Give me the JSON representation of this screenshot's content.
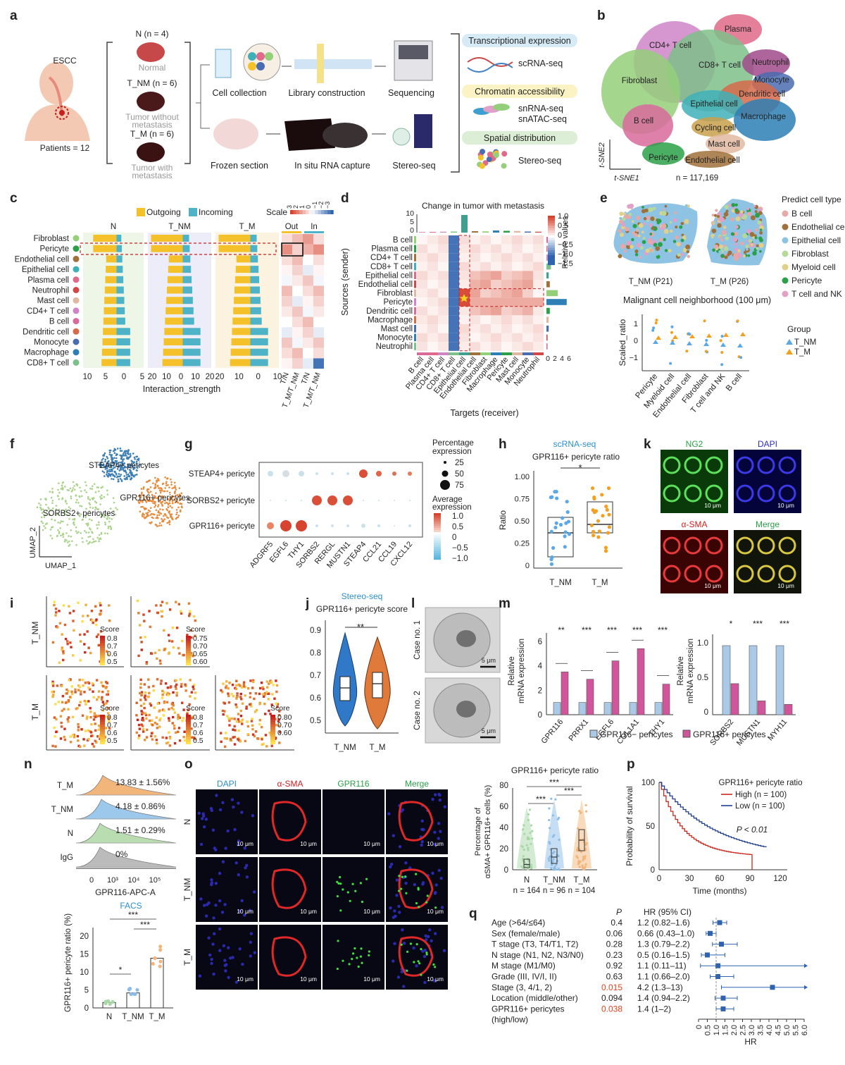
{
  "panel_letters": [
    "a",
    "b",
    "c",
    "d",
    "e",
    "f",
    "g",
    "h",
    "k",
    "i",
    "j",
    "l",
    "m",
    "n",
    "o",
    "p",
    "q"
  ],
  "a": {
    "escc": "ESCC",
    "patients": "Patients = 12",
    "groups": [
      {
        "id": "N (n = 4)",
        "name": "Normal"
      },
      {
        "id": "T_NM (n = 6)",
        "name": "Tumor without",
        "name2": "metastasis"
      },
      {
        "id": "T_M (n = 6)",
        "name": "Tumor with",
        "name2": "metastasis"
      }
    ],
    "steps_top": [
      "Cell collection",
      "Library construction",
      "Sequencing"
    ],
    "steps_bottom": [
      "Frozen section",
      "In situ RNA capture",
      "Stereo-seq"
    ],
    "boxes": [
      {
        "title": "Transcriptional expression",
        "items": [
          "scRNA-seq"
        ],
        "color": "#d7ebf7"
      },
      {
        "title": "Chromatin accessibility",
        "items": [
          "snRNA-seq",
          "snATAC-seq"
        ],
        "color": "#fbf3c4"
      },
      {
        "title": "Spatial distribution",
        "items": [
          "Stereo-seq"
        ],
        "color": "#dcefd6"
      }
    ]
  },
  "b": {
    "clusters": [
      {
        "name": "Plasma",
        "color": "#e06a8a"
      },
      {
        "name": "CD4+ T cell",
        "color": "#cf84c8"
      },
      {
        "name": "CD8+ T cell",
        "color": "#7ec08a"
      },
      {
        "name": "Neutrophil",
        "color": "#a04a8a"
      },
      {
        "name": "Monocyte",
        "color": "#4a6cb0"
      },
      {
        "name": "Fibroblast",
        "color": "#94cf7a"
      },
      {
        "name": "Dendritic cell",
        "color": "#d66a4a"
      },
      {
        "name": "Epithelial cell",
        "color": "#3fb0b8"
      },
      {
        "name": "Macrophage",
        "color": "#2d7fb5"
      },
      {
        "name": "B cell",
        "color": "#d96a9c"
      },
      {
        "name": "Cycling cell",
        "color": "#c8a04a"
      },
      {
        "name": "Mast cell",
        "color": "#e0b8a0"
      },
      {
        "name": "Pericyte",
        "color": "#2aa048"
      },
      {
        "name": "Endothelial cell",
        "color": "#a0703a"
      }
    ],
    "x_axis": "t-SNE1",
    "y_axis": "t-SNE2",
    "n": "n = 117,169"
  },
  "c": {
    "legend": [
      "Outgoing",
      "Incoming"
    ],
    "legend_colors": [
      "#f5c12a",
      "#4fb3c8"
    ],
    "scale_label": "Scale",
    "scale_ticks": [
      "3",
      "2",
      "1",
      "0",
      "−1",
      "−2",
      "−3"
    ],
    "groups": [
      "N",
      "T_NM",
      "T_M"
    ],
    "heat_cols": [
      "Out",
      "In"
    ],
    "cells": [
      "Fibroblast",
      "Pericyte",
      "Endothelial cell",
      "Epithelial cell",
      "Plasma cell",
      "Neutrophil",
      "Mast cell",
      "CD4+ T cell",
      "B cell",
      "Dendritic cell",
      "Monocyte",
      "Macrophage",
      "CD8+ T cell"
    ],
    "cell_colors": [
      "#94cf7a",
      "#2aa048",
      "#a0703a",
      "#3fb0b8",
      "#e06a8a",
      "#d04848",
      "#e0b8a0",
      "#cf84c8",
      "#d96a9c",
      "#d66a4a",
      "#4a6cb0",
      "#2d7fb5",
      "#7ec08a"
    ],
    "x_ticks_N": [
      "10",
      "5",
      "0",
      "5"
    ],
    "x_ticks_TNM": [
      "20",
      "10",
      "0",
      "10",
      "20"
    ],
    "x_ticks_TM": [
      "20",
      "10",
      "0",
      "10"
    ],
    "x_label": "Interaction_strength",
    "bottom_labels": [
      "T/N",
      "T_M/T_NM",
      "T/N",
      "T_M/T_NM"
    ]
  },
  "d": {
    "title": "Change in tumor with metastasis",
    "y_ticks_top": [
      "10",
      "5",
      "0"
    ],
    "rows": [
      "B cell",
      "Plasma cell",
      "CD4+ T cell",
      "CD8+ T cell",
      "Epithelial cell",
      "Endothelial cell",
      "Fibroblast",
      "Pericyte",
      "Dendritic cell",
      "Macrophage",
      "Mast cell",
      "Monocyte",
      "Neutrophil"
    ],
    "cols": [
      "B cell",
      "Plasma cell",
      "CD4+ T cell",
      "CD8+ T cell",
      "Epithelial cell",
      "Endothelial cell",
      "Fibroblast",
      "Macrophage",
      "Pericyte",
      "Mast cell",
      "Monocyte",
      "Neutrophil"
    ],
    "y_label": "Sources (sender)",
    "x_label": "Targets (receiver)",
    "colorbar_label": "Relative values",
    "colorbar_ticks": [
      "1.0",
      "0.5",
      "0",
      "−0.5",
      "−1.0",
      "−1.5"
    ],
    "right_ticks": [
      "0",
      "2",
      "4",
      "6"
    ]
  },
  "e": {
    "legend_title": "Predict cell type",
    "legend": [
      {
        "name": "B cell",
        "color": "#e8a8a8"
      },
      {
        "name": "Endothelial cell",
        "color": "#a0703a"
      },
      {
        "name": "Epithelial cell",
        "color": "#8ec3e3"
      },
      {
        "name": "Fibroblast",
        "color": "#b6d99a"
      },
      {
        "name": "Myeloid cell",
        "color": "#e0d08a"
      },
      {
        "name": "Pericyte",
        "color": "#2aa048"
      },
      {
        "name": "T cell and NK",
        "color": "#e0a0c8"
      }
    ],
    "tissue_labels": [
      "T_NM (P21)",
      "T_M (P26)"
    ],
    "sub_title": "Malignant cell neighborhood (100 μm)",
    "y_label": "Scaled_ratio",
    "y_ticks": [
      "1",
      "0",
      "−1"
    ],
    "x_cats": [
      "Pericyte",
      "Myeloid cell",
      "Endothelial cell",
      "Fibroblast",
      "T cell and NK",
      "B cell"
    ],
    "group_title": "Group",
    "groups": [
      "T_NM",
      "T_M"
    ]
  },
  "f": {
    "clusters": [
      "STEAP4+ pericytes",
      "GPR116+ pericytes",
      "SORBS2+ pericytes"
    ],
    "x_axis": "UMAP_1",
    "y_axis": "UMAP_2"
  },
  "g": {
    "rows": [
      "STEAP4+ pericyte",
      "SORBS2+ pericyte",
      "GPR116+ pericyte"
    ],
    "genes": [
      "ADGRF5",
      "EGFL6",
      "THY1",
      "SORBS2",
      "RERGL",
      "MUSTN1",
      "STEAP4",
      "CCL21",
      "CCL19",
      "CXCL12"
    ],
    "size_title": "Percentage expression",
    "size_values": [
      "25",
      "50",
      "75"
    ],
    "color_title": "Average expression",
    "color_ticks": [
      "1.0",
      "0.5",
      "0",
      "−0.5",
      "−1.0"
    ]
  },
  "h": {
    "method": "scRNA-seq",
    "title": "GPR116+ pericyte ratio",
    "y_label": "Ratio",
    "y_ticks": [
      "1.00",
      "0.75",
      "0.50",
      "0.25",
      "0"
    ],
    "groups": [
      "T_NM",
      "T_M"
    ],
    "sig": "*"
  },
  "k": {
    "channels": [
      "NG2",
      "DAPI",
      "α-SMA",
      "Merge"
    ],
    "scale": "10 μm"
  },
  "i": {
    "rows": [
      "T_NM",
      "T_M"
    ],
    "score_label": "Score",
    "legends": [
      [
        "0.8",
        "0.7",
        "0.6",
        "0.5"
      ],
      [
        "0.75",
        "0.70",
        "0.65",
        "0.60"
      ],
      [
        "0.8",
        "0.7",
        "0.6",
        "0.5"
      ],
      [
        "0.8",
        "0.7",
        "0.6",
        "0.5"
      ],
      [
        "0.80",
        "0.70",
        "0.60"
      ]
    ]
  },
  "j": {
    "method": "Stereo-seq",
    "title": "GPR116+ pericyte score",
    "y_ticks": [
      "0.9",
      "0.8",
      "0.7",
      "0.6",
      "0.5"
    ],
    "groups": [
      "T_NM",
      "T_M"
    ],
    "sig": "**"
  },
  "l": {
    "cases": [
      "Case no. 1",
      "Case no. 2"
    ],
    "scale": "5 μm"
  },
  "m": {
    "y_label": "Relative mRNA expression",
    "left_ticks": [
      "6",
      "4",
      "2",
      "0"
    ],
    "right_ticks": [
      "1.0",
      "0.5",
      "0"
    ],
    "left_genes": [
      "GPR116",
      "PRRX1",
      "EGFL6",
      "COL1A1",
      "THY1"
    ],
    "right_genes": [
      "SORBS2",
      "MUSTN1",
      "MYH11"
    ],
    "left_sig": [
      "**",
      "***",
      "***",
      "***",
      "***"
    ],
    "right_sig": [
      "*",
      "***",
      "***"
    ],
    "legend": [
      "GPR116− pericytes",
      "GPR116+ pericytes"
    ],
    "legend_colors": [
      "#a9c9e6",
      "#d0559a"
    ]
  },
  "n": {
    "rows": [
      {
        "name": "T_M",
        "value": "13.83 ± 1.56%",
        "color": "#f2b57a"
      },
      {
        "name": "T_NM",
        "value": "4.18 ± 0.86%",
        "color": "#9cc8ec"
      },
      {
        "name": "N",
        "value": "1.51 ± 0.29%",
        "color": "#b9ddb0"
      },
      {
        "name": "IgG",
        "value": "0%",
        "color": "#bbbbbb"
      }
    ],
    "x_ticks": [
      "0",
      "10³",
      "10⁴",
      "10⁵"
    ],
    "x_label": "GPR116-APC-A",
    "facs": "FACS",
    "y_label": "GPR116+ pericyte ratio (%)",
    "y_ticks": [
      "20",
      "15",
      "10",
      "5",
      "0"
    ],
    "groups": [
      "N",
      "T_NM",
      "T_M"
    ],
    "sigs": [
      "*",
      "***",
      "***"
    ]
  },
  "o": {
    "channels": [
      "DAPI",
      "α-SMA",
      "GPR116",
      "Merge"
    ],
    "rows": [
      "N",
      "T_NM",
      "T_M"
    ],
    "scale": "10 μm",
    "plot_title": "GPR116+ pericyte ratio",
    "y_label": "Percentage of αSMA+ GPR116+ cells (%)",
    "y_ticks": [
      "80",
      "60",
      "40",
      "20",
      "0"
    ],
    "groups": [
      "N",
      "T_NM",
      "T_M"
    ],
    "ns": [
      "n = 164",
      "n = 96",
      "n = 104"
    ],
    "sigs": [
      "***",
      "***",
      "***"
    ]
  },
  "p": {
    "legend_title": "GPR116+ pericyte ratio",
    "legend": [
      "High (n = 100)",
      "Low (n = 100)"
    ],
    "legend_colors": [
      "#c8281e",
      "#1f3d8f"
    ],
    "pval": "P < 0.01",
    "y_label": "Probability of survival",
    "y_ticks": [
      "100",
      "50",
      "0"
    ],
    "x_ticks": [
      "0",
      "30",
      "60",
      "90",
      "120"
    ],
    "x_label": "Time (months)"
  },
  "q": {
    "col_p": "P",
    "col_hr": "HR (95% CI)",
    "rows": [
      {
        "label": "Age (>64/≤64)",
        "p": "0.4",
        "hr": "1.2 (0.82–1.6)",
        "v": 1.2,
        "lo": 0.82,
        "hi": 1.6,
        "sig": false
      },
      {
        "label": "Sex (female/male)",
        "p": "0.06",
        "hr": "0.66 (0.43–1.0)",
        "v": 0.66,
        "lo": 0.43,
        "hi": 1.0,
        "sig": false
      },
      {
        "label": "T stage (T3, T4/T1, T2)",
        "p": "0.28",
        "hr": "1.3 (0.79–2.2)",
        "v": 1.3,
        "lo": 0.79,
        "hi": 2.2,
        "sig": false
      },
      {
        "label": "N stage (N1, N2, N3/N0)",
        "p": "0.23",
        "hr": "0.5 (0.16–1.5)",
        "v": 0.5,
        "lo": 0.16,
        "hi": 1.5,
        "sig": false
      },
      {
        "label": "M stage (M1/M0)",
        "p": "0.92",
        "hr": "1.1 (0.11–11)",
        "v": 1.1,
        "lo": 0.11,
        "hi": 11,
        "sig": false
      },
      {
        "label": "Grade (III, IV/I, II)",
        "p": "0.63",
        "hr": "1.1 (0.66–2.0)",
        "v": 1.1,
        "lo": 0.66,
        "hi": 2.0,
        "sig": false
      },
      {
        "label": "Stage (3, 4/1, 2)",
        "p": "0.015",
        "hr": "4.2 (1.3–13)",
        "v": 4.2,
        "lo": 1.3,
        "hi": 13,
        "sig": true
      },
      {
        "label": "Location (middle/other)",
        "p": "0.094",
        "hr": "1.4 (0.94–2.2)",
        "v": 1.4,
        "lo": 0.94,
        "hi": 2.2,
        "sig": false
      },
      {
        "label": "GPR116+ pericytes",
        "label2": "(high/low)",
        "p": "0.038",
        "hr": "1.4 (1–2)",
        "v": 1.4,
        "lo": 1.0,
        "hi": 2.0,
        "sig": true
      }
    ],
    "x_ticks": [
      "0",
      "0.5",
      "1.0",
      "1.5",
      "2.0",
      "2.5",
      "3.0",
      "3.5",
      "4.0",
      "4.5",
      "5.0",
      "5.5",
      "6.0"
    ],
    "x_label": "HR"
  }
}
